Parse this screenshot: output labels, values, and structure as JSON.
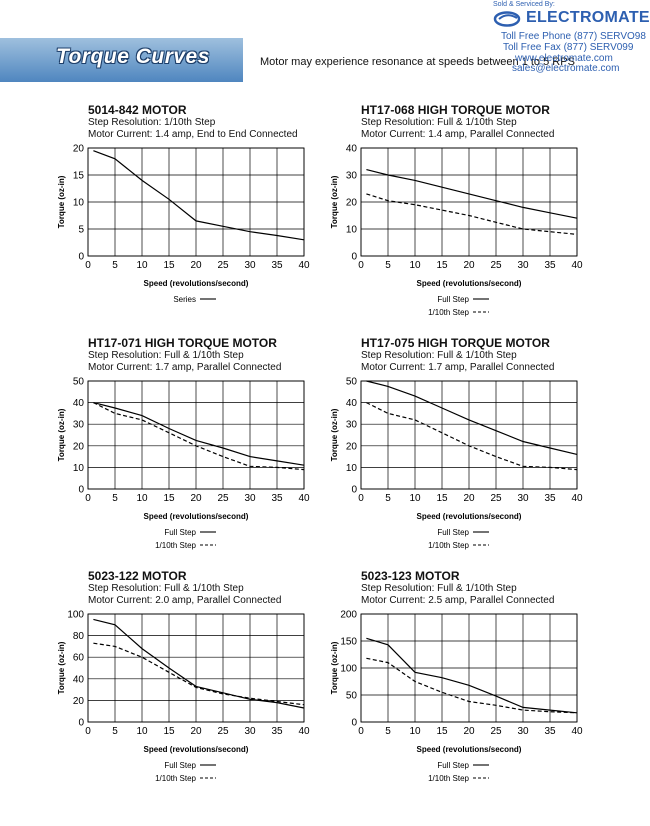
{
  "header": {
    "banner_title": "Torque Curves",
    "resonance_note": "Motor may experience resonance at speeds between 1 to 5 RPS",
    "sold_by": "Sold & Serviced By:",
    "brand": "ELECTROMATE",
    "phone": "Toll Free Phone  (877) SERVO98",
    "fax": "Toll Free Fax  (877) SERV099",
    "website": "www.electromate.com",
    "email": "sales@electromate.com",
    "brand_color": "#2d5fb0"
  },
  "chart_data": [
    {
      "type": "line",
      "title": "5014-842 MOTOR",
      "subtitle": [
        "Step Resolution: 1/10th Step",
        "Motor Current: 1.4 amp, End to End Connected"
      ],
      "xlabel": "Speed (revolutions/second)",
      "ylabel": "Torque (oz-in)",
      "xlim": [
        0,
        40
      ],
      "ylim": [
        0,
        20
      ],
      "xticks": [
        0,
        5,
        10,
        15,
        20,
        25,
        30,
        35,
        40
      ],
      "yticks": [
        0,
        5,
        10,
        15,
        20
      ],
      "x": [
        1,
        5,
        10,
        15,
        20,
        25,
        30,
        35,
        40
      ],
      "series": [
        {
          "name": "Series",
          "style": "solid",
          "values": [
            19.5,
            18,
            14,
            10.5,
            6.5,
            5.5,
            4.5,
            3.8,
            3
          ]
        }
      ]
    },
    {
      "type": "line",
      "title": "HT17-068 HIGH TORQUE MOTOR",
      "subtitle": [
        "Step Resolution: Full & 1/10th Step",
        "Motor Current: 1.4 amp, Parallel Connected"
      ],
      "xlabel": "Speed (revolutions/second)",
      "ylabel": "Torque (oz-in)",
      "xlim": [
        0,
        40
      ],
      "ylim": [
        0,
        40
      ],
      "xticks": [
        0,
        5,
        10,
        15,
        20,
        25,
        30,
        35,
        40
      ],
      "yticks": [
        0,
        10,
        20,
        30,
        40
      ],
      "x": [
        1,
        5,
        10,
        15,
        20,
        25,
        30,
        35,
        40
      ],
      "series": [
        {
          "name": "Full Step",
          "style": "solid",
          "values": [
            32,
            30,
            28,
            25.5,
            23,
            20.5,
            18,
            16,
            14
          ]
        },
        {
          "name": "1/10th Step",
          "style": "dashed",
          "values": [
            23,
            20.5,
            19,
            17,
            15,
            12.5,
            10,
            9,
            8
          ]
        }
      ]
    },
    {
      "type": "line",
      "title": "HT17-071 HIGH TORQUE MOTOR",
      "subtitle": [
        "Step Resolution: Full & 1/10th Step",
        "Motor Current: 1.7 amp, Parallel Connected"
      ],
      "xlabel": "Speed (revolutions/second)",
      "ylabel": "Torque (oz-in)",
      "xlim": [
        0,
        40
      ],
      "ylim": [
        0,
        50
      ],
      "xticks": [
        0,
        5,
        10,
        15,
        20,
        25,
        30,
        35,
        40
      ],
      "yticks": [
        0,
        10,
        20,
        30,
        40,
        50
      ],
      "x": [
        1,
        5,
        10,
        15,
        20,
        25,
        30,
        35,
        40
      ],
      "series": [
        {
          "name": "Full Step",
          "style": "solid",
          "values": [
            40,
            37.5,
            34,
            28,
            22.5,
            19,
            15,
            13,
            11
          ]
        },
        {
          "name": "1/10th Step",
          "style": "dashed",
          "values": [
            40,
            35,
            32,
            26,
            20,
            15,
            10.5,
            10,
            9
          ]
        }
      ]
    },
    {
      "type": "line",
      "title": "HT17-075 HIGH TORQUE MOTOR",
      "subtitle": [
        "Step Resolution: Full & 1/10th Step",
        "Motor Current: 1.7 amp, Parallel Connected"
      ],
      "xlabel": "Speed (revolutions/second)",
      "ylabel": "Torque (oz-in)",
      "xlim": [
        0,
        40
      ],
      "ylim": [
        0,
        50
      ],
      "xticks": [
        0,
        5,
        10,
        15,
        20,
        25,
        30,
        35,
        40
      ],
      "yticks": [
        0,
        10,
        20,
        30,
        40,
        50
      ],
      "x": [
        1,
        5,
        10,
        15,
        20,
        25,
        30,
        35,
        40
      ],
      "series": [
        {
          "name": "Full Step",
          "style": "solid",
          "values": [
            50,
            47.5,
            43,
            37.5,
            32,
            27,
            22,
            19,
            16
          ]
        },
        {
          "name": "1/10th Step",
          "style": "dashed",
          "values": [
            40,
            35,
            32,
            26,
            20,
            15,
            10.5,
            10,
            9
          ]
        }
      ]
    },
    {
      "type": "line",
      "title": "5023-122 MOTOR",
      "subtitle": [
        "Step Resolution: Full & 1/10th Step",
        "Motor Current: 2.0 amp, Parallel Connected"
      ],
      "xlabel": "Speed (revolutions/second)",
      "ylabel": "Torque (oz-in)",
      "xlim": [
        0,
        40
      ],
      "ylim": [
        0,
        100
      ],
      "xticks": [
        0,
        5,
        10,
        15,
        20,
        25,
        30,
        35,
        40
      ],
      "yticks": [
        0,
        20,
        40,
        60,
        80,
        100
      ],
      "x": [
        1,
        5,
        10,
        15,
        20,
        25,
        30,
        35,
        40
      ],
      "series": [
        {
          "name": "Full Step",
          "style": "solid",
          "values": [
            95,
            90,
            68,
            50,
            33,
            27,
            21,
            18,
            13
          ]
        },
        {
          "name": "1/10th Step",
          "style": "dashed",
          "values": [
            73,
            70,
            60,
            46,
            32,
            26,
            22,
            19,
            16
          ]
        }
      ]
    },
    {
      "type": "line",
      "title": "5023-123 MOTOR",
      "subtitle": [
        "Step Resolution: Full & 1/10th Step",
        "Motor Current: 2.5 amp, Parallel Connected"
      ],
      "xlabel": "Speed (revolutions/second)",
      "ylabel": "Torque (oz-in)",
      "xlim": [
        0,
        40
      ],
      "ylim": [
        0,
        200
      ],
      "xticks": [
        0,
        5,
        10,
        15,
        20,
        25,
        30,
        35,
        40
      ],
      "yticks": [
        0,
        50,
        100,
        150,
        200
      ],
      "x": [
        1,
        5,
        10,
        15,
        20,
        25,
        30,
        35,
        40
      ],
      "series": [
        {
          "name": "Full Step",
          "style": "solid",
          "values": [
            155,
            143,
            92,
            82,
            68,
            48,
            27,
            22,
            17
          ]
        },
        {
          "name": "1/10th Step",
          "style": "dashed",
          "values": [
            118,
            110,
            75,
            55,
            38,
            31,
            22,
            19,
            17
          ]
        }
      ]
    }
  ]
}
